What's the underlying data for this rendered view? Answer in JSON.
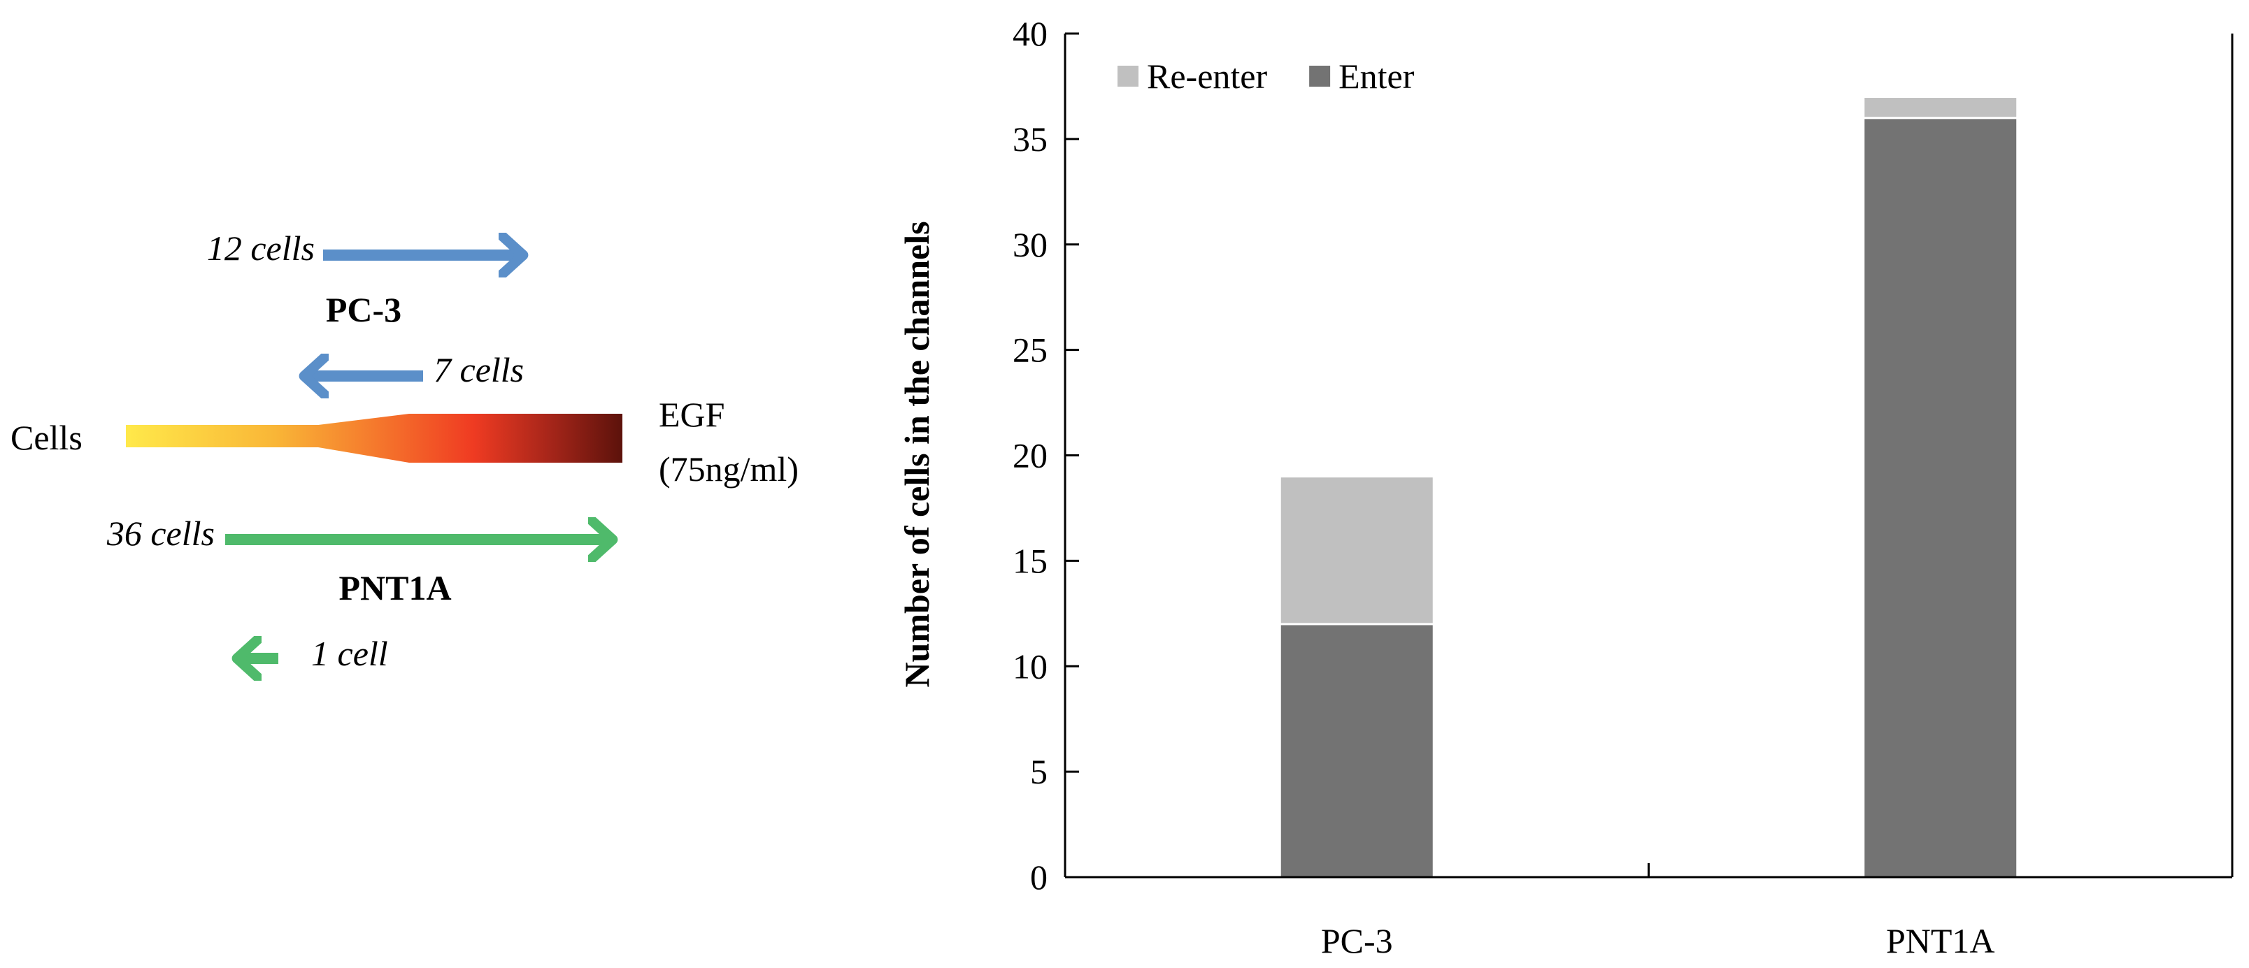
{
  "diagram": {
    "pc3": {
      "label": "PC-3",
      "forward": {
        "count_label": "12 cells",
        "color": "#5b8fc9"
      },
      "backward": {
        "count_label": "7 cells",
        "color": "#5b8fc9"
      }
    },
    "pnt1a": {
      "label": "PNT1A",
      "forward": {
        "count_label": "36 cells",
        "color": "#4fba6b"
      },
      "backward": {
        "count_label": "1 cell",
        "color": "#4fba6b"
      }
    },
    "channel": {
      "left_label": "Cells",
      "right_label_line1": "EGF",
      "right_label_line2": "(75ng/ml)",
      "gradient": [
        "#ffe94a",
        "#f9b637",
        "#f46a2a",
        "#ef3b22",
        "#a8261a",
        "#5c120b"
      ]
    }
  },
  "chart_data": {
    "type": "bar",
    "stacked": true,
    "categories": [
      "PC-3",
      "PNT1A"
    ],
    "series": [
      {
        "name": "Enter",
        "values": [
          12,
          36
        ],
        "color": "#737373"
      },
      {
        "name": "Re-enter",
        "values": [
          7,
          1
        ],
        "color": "#c0c0c0"
      }
    ],
    "ylabel": "Number of cells in the channels",
    "xlabel": "",
    "ylim": [
      0,
      40
    ],
    "yticks": [
      0,
      5,
      10,
      15,
      20,
      25,
      30,
      35,
      40
    ],
    "grid": false,
    "legend": {
      "placement": "top-left",
      "order": [
        "Re-enter",
        "Enter"
      ]
    }
  }
}
